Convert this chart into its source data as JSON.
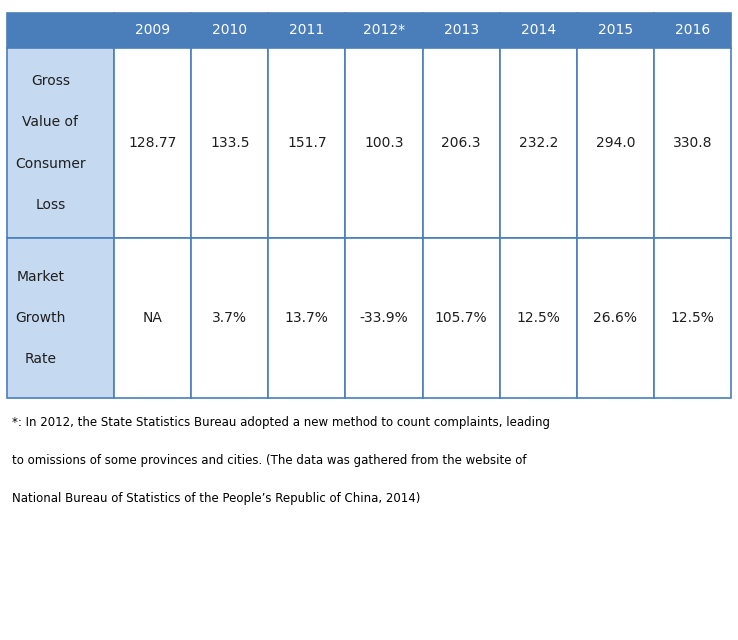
{
  "header_years": [
    "2009",
    "2010",
    "2011",
    "2012*",
    "2013",
    "2014",
    "2015",
    "2016"
  ],
  "row1_label_lines": [
    "Gross",
    "Value of",
    "Consumer",
    "Loss"
  ],
  "row1_values": [
    "128.77",
    "133.5",
    "151.7",
    "100.3",
    "206.3",
    "232.2",
    "294.0",
    "330.8"
  ],
  "row2_label_lines": [
    "Market",
    "Growth",
    "Rate"
  ],
  "row2_values": [
    "NA",
    "3.7%",
    "13.7%",
    "-33.9%",
    "105.7%",
    "12.5%",
    "26.6%",
    "12.5%"
  ],
  "header_bg": "#4A7EBB",
  "header_text_color": "#FFFFFF",
  "label_bg": "#C5D9F1",
  "cell_bg": "#FFFFFF",
  "cell_text_color": "#1F1F1F",
  "border_color": "#4A7EBB",
  "border_lw": 1.2,
  "footnote_lines": [
    "*: In 2012, the State Statistics Bureau adopted a new method to count complaints, leading",
    "to omissions of some provinces and cities. (The data was gathered from the website of",
    "National Bureau of Statistics of the People’s Republic of China, 2014)"
  ],
  "font_size_header": 10,
  "font_size_cell": 10,
  "font_size_label": 10,
  "font_size_footnote": 8.5,
  "fig_width": 7.38,
  "fig_height": 6.4,
  "dpi": 100
}
